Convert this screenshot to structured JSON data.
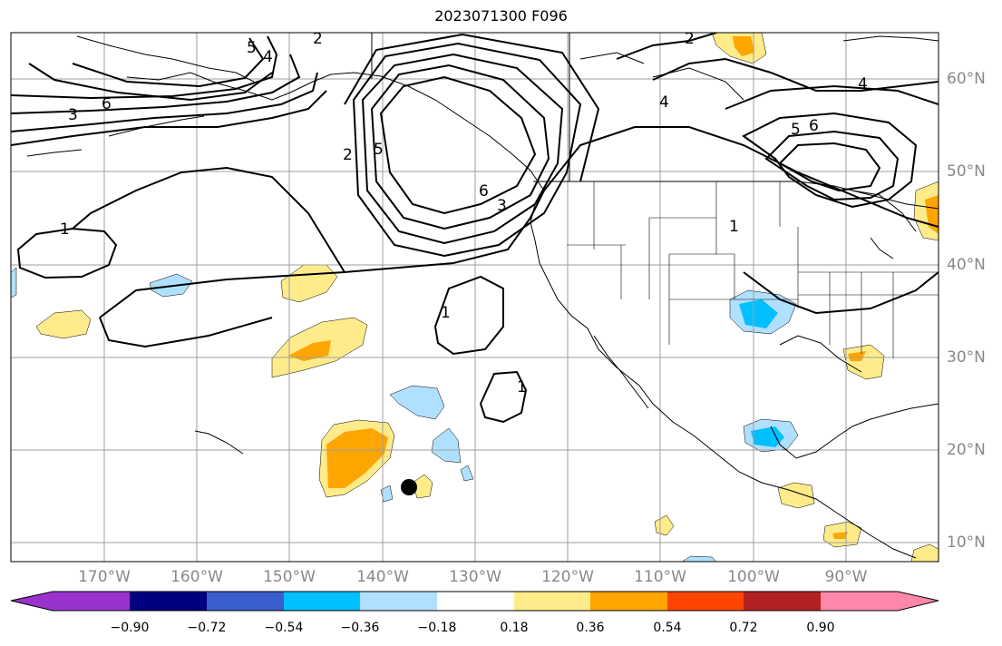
{
  "title": "2023071300 F096",
  "lon_labels": [
    "170°W",
    "160°W",
    "150°W",
    "140°W",
    "130°W",
    "120°W",
    "110°W",
    "100°W",
    "90°W"
  ],
  "lat_labels": [
    "60°N",
    "50°N",
    "40°N",
    "30°N",
    "20°N",
    "10°N"
  ],
  "colorbar": {
    "labels": [
      "−0.90",
      "−0.72",
      "−0.54",
      "−0.36",
      "−0.18",
      "0.18",
      "0.36",
      "0.54",
      "0.72",
      "0.90"
    ],
    "colors": [
      "#9933cc",
      "#000080",
      "#3a5fcd",
      "#00bfff",
      "#b0e0ff",
      "#ffffff",
      "#ffeb8a",
      "#ffa500",
      "#ff4500",
      "#b22222",
      "#ff88aa"
    ]
  },
  "contour_labels": [
    "1",
    "2",
    "3",
    "4",
    "5",
    "6"
  ],
  "colors": {
    "contour": "#000000",
    "grid": "#9e9e9e",
    "coast": "#000000",
    "marker": "#000000"
  }
}
